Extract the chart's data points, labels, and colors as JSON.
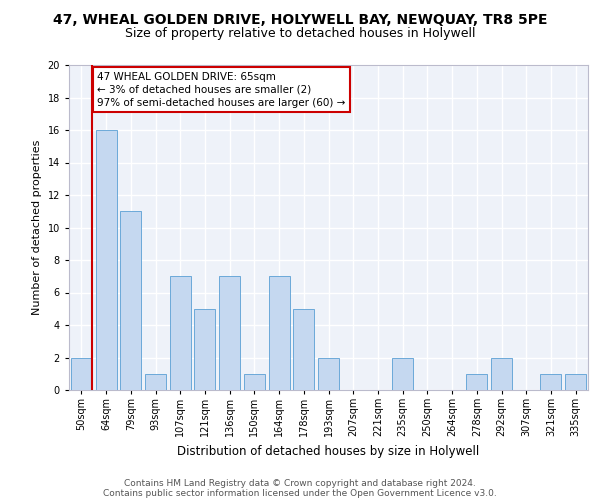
{
  "title1": "47, WHEAL GOLDEN DRIVE, HOLYWELL BAY, NEWQUAY, TR8 5PE",
  "title2": "Size of property relative to detached houses in Holywell",
  "xlabel": "Distribution of detached houses by size in Holywell",
  "ylabel": "Number of detached properties",
  "categories": [
    "50sqm",
    "64sqm",
    "79sqm",
    "93sqm",
    "107sqm",
    "121sqm",
    "136sqm",
    "150sqm",
    "164sqm",
    "178sqm",
    "193sqm",
    "207sqm",
    "221sqm",
    "235sqm",
    "250sqm",
    "264sqm",
    "278sqm",
    "292sqm",
    "307sqm",
    "321sqm",
    "335sqm"
  ],
  "values": [
    2,
    16,
    11,
    1,
    7,
    5,
    7,
    1,
    7,
    5,
    2,
    0,
    0,
    2,
    0,
    0,
    1,
    2,
    0,
    1,
    1
  ],
  "bar_color": "#c5d8f0",
  "bar_edge_color": "#5a9fd4",
  "vline_xindex": 0,
  "vline_color": "#cc0000",
  "annotation_line1": "47 WHEAL GOLDEN DRIVE: 65sqm",
  "annotation_line2": "← 3% of detached houses are smaller (2)",
  "annotation_line3": "97% of semi-detached houses are larger (60) →",
  "annotation_box_color": "#ffffff",
  "annotation_box_edge_color": "#cc0000",
  "ylim": [
    0,
    20
  ],
  "yticks": [
    0,
    2,
    4,
    6,
    8,
    10,
    12,
    14,
    16,
    18,
    20
  ],
  "background_color": "#eef2f9",
  "grid_color": "#ffffff",
  "footer_line1": "Contains HM Land Registry data © Crown copyright and database right 2024.",
  "footer_line2": "Contains public sector information licensed under the Open Government Licence v3.0.",
  "title1_fontsize": 10,
  "title2_fontsize": 9,
  "xlabel_fontsize": 8.5,
  "ylabel_fontsize": 8,
  "tick_fontsize": 7,
  "annotation_fontsize": 7.5,
  "footer_fontsize": 6.5
}
